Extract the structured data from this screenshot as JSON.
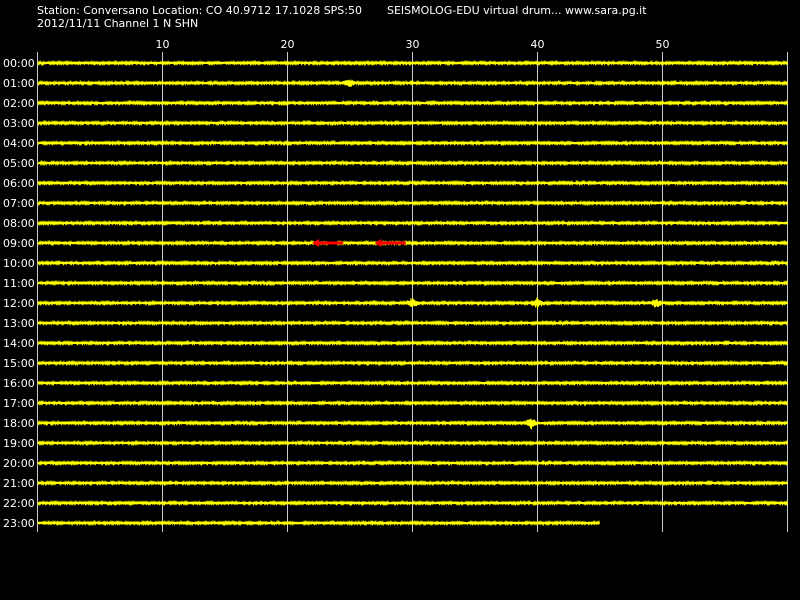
{
  "header": {
    "station_line": "Station: Conversano Location: CO 40.9712 17.1028 SPS:50",
    "app_line": "SEISMOLOG-EDU virtual drum... www.sara.pg.it",
    "date_line": "2012/11/11  Channel 1 N SHN"
  },
  "colors": {
    "background": "#000000",
    "trace": "#ffff00",
    "event_pick": "#ff0000",
    "grid": "#c8c8c8",
    "text": "#ffffff"
  },
  "chart_data": {
    "type": "line",
    "title": "",
    "xlabel": "",
    "ylabel": "",
    "x_tick_labels": [
      "10",
      "20",
      "30",
      "40",
      "50"
    ],
    "x_ticks": [
      10,
      20,
      30,
      40,
      50
    ],
    "xlim": [
      0,
      60
    ],
    "grid": true,
    "hour_labels": [
      "00:00",
      "01:00",
      "02:00",
      "03:00",
      "04:00",
      "05:00",
      "06:00",
      "07:00",
      "08:00",
      "09:00",
      "10:00",
      "11:00",
      "12:00",
      "13:00",
      "14:00",
      "15:00",
      "16:00",
      "17:00",
      "18:00",
      "19:00",
      "20:00",
      "21:00",
      "22:00",
      "23:00"
    ],
    "trace_end_minute": [
      60,
      60,
      60,
      60,
      60,
      60,
      60,
      60,
      60,
      60,
      60,
      60,
      60,
      60,
      60,
      60,
      60,
      60,
      60,
      60,
      60,
      60,
      60,
      45
    ],
    "events": [
      {
        "row": 1,
        "minute": 25,
        "amplitude": 1.5
      },
      {
        "row": 12,
        "minute": 30,
        "amplitude": 1.8
      },
      {
        "row": 12,
        "minute": 40,
        "amplitude": 2.2
      },
      {
        "row": 12,
        "minute": 49.5,
        "amplitude": 1.8
      },
      {
        "row": 18,
        "minute": 39.5,
        "amplitude": 2.6
      }
    ],
    "event_picks": [
      {
        "row": 9,
        "start_minute": 22,
        "end_minute": 24.5
      },
      {
        "row": 9,
        "start_minute": 27,
        "end_minute": 29.5
      }
    ]
  }
}
